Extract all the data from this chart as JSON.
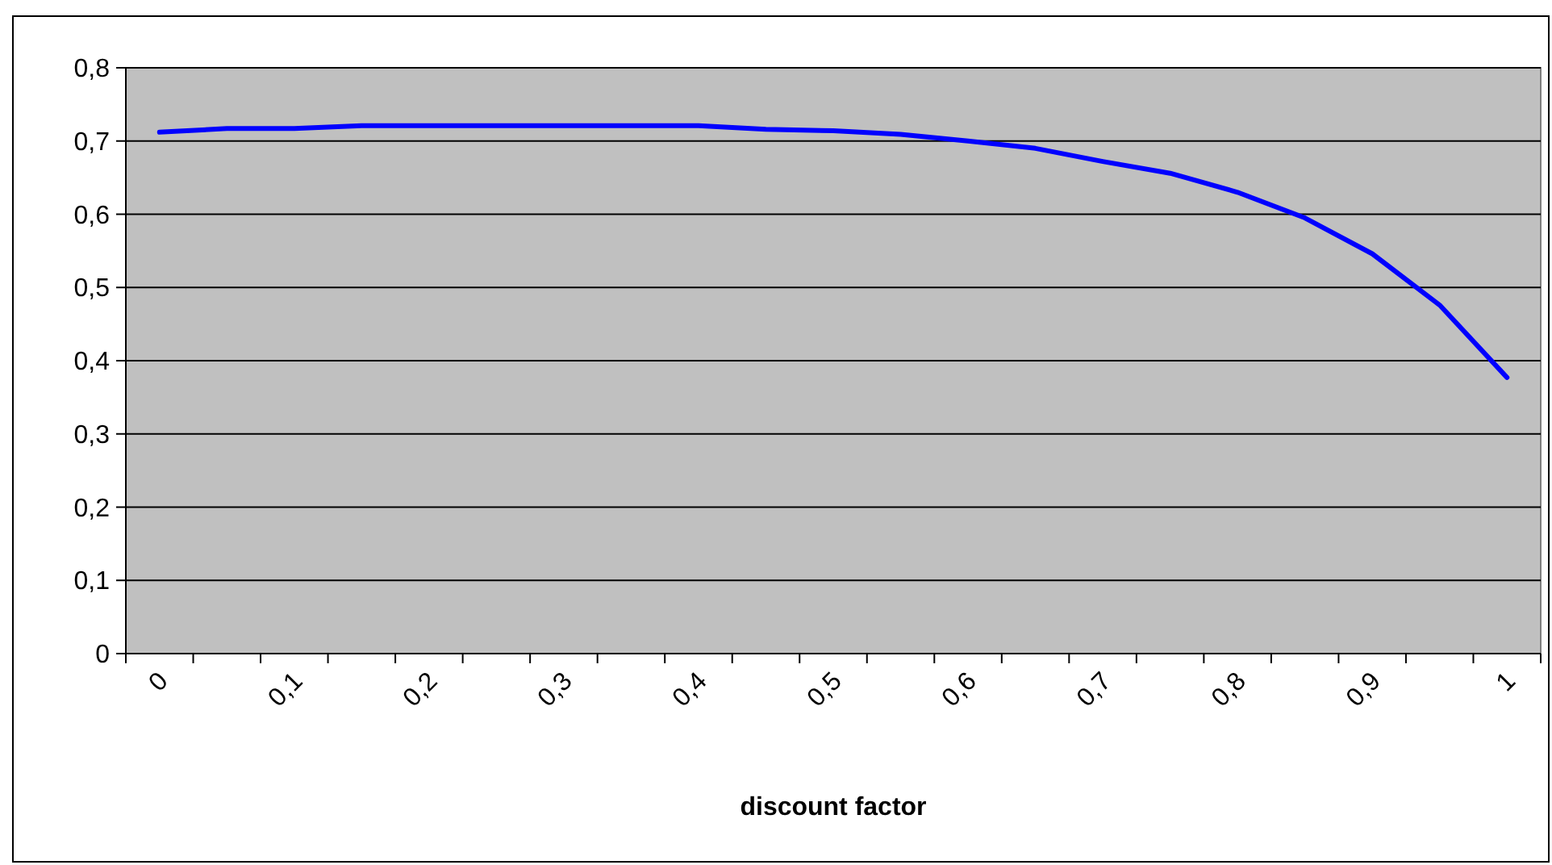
{
  "chart_data": {
    "type": "line",
    "xlabel": "discount factor",
    "categories": [
      "0",
      null,
      "0,1",
      null,
      "0,2",
      null,
      "0,3",
      null,
      "0,4",
      null,
      "0,5",
      null,
      "0,6",
      null,
      "0,7",
      null,
      "0,8",
      null,
      "0,9",
      null,
      "1"
    ],
    "series": [
      {
        "color": "#0000ff",
        "values": [
          0.712,
          0.717,
          0.717,
          0.721,
          0.721,
          0.721,
          0.721,
          0.721,
          0.721,
          0.716,
          0.714,
          0.709,
          0.7,
          0.69,
          0.672,
          0.656,
          0.63,
          0.595,
          0.546,
          0.476,
          0.377
        ]
      }
    ],
    "ylim": [
      0,
      0.8
    ],
    "yticks": [
      {
        "value": 0,
        "label": "0"
      },
      {
        "value": 0.1,
        "label": "0,1"
      },
      {
        "value": 0.2,
        "label": "0,2"
      },
      {
        "value": 0.3,
        "label": "0,3"
      },
      {
        "value": 0.4,
        "label": "0,4"
      },
      {
        "value": 0.5,
        "label": "0,5"
      },
      {
        "value": 0.6,
        "label": "0,6"
      },
      {
        "value": 0.7,
        "label": "0,7"
      },
      {
        "value": 0.8,
        "label": "0,8"
      }
    ],
    "grid": "y",
    "marker": "none",
    "line_style": "solid"
  }
}
